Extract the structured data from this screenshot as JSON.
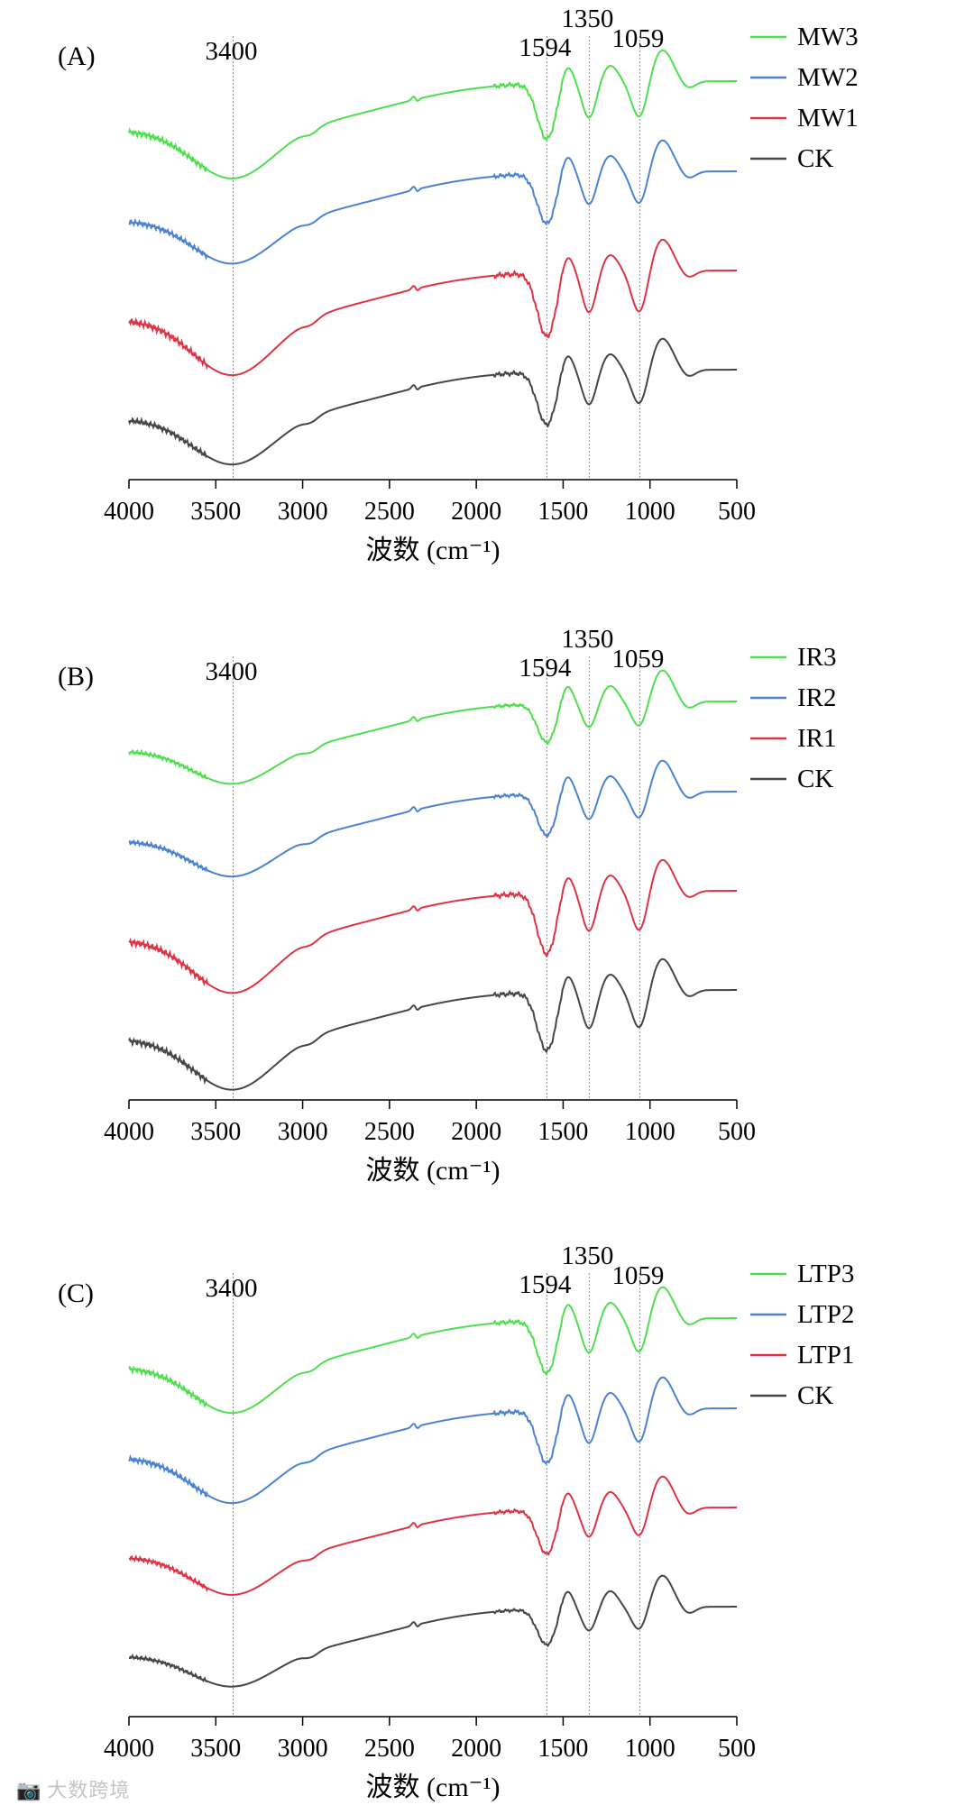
{
  "colors": {
    "MW3": "#4ddf4d",
    "MW2": "#4a82d2",
    "MW1": "#dd3343",
    "CK": "#454545",
    "IR3": "#4ddf4d",
    "IR2": "#4a82d2",
    "IR1": "#dd3343",
    "LTP3": "#4ddf4d",
    "LTP2": "#4a82d2",
    "LTP1": "#dd3343",
    "axis": "#000000",
    "guide": "#8c8c8c"
  },
  "watermark": {
    "icon": "camera-logo-icon",
    "text": "大数跨境"
  },
  "chart_data": [
    {
      "type": "line",
      "panel_label": "(A)",
      "xlabel": "波数 (cm⁻¹)",
      "xlim": [
        4000,
        500
      ],
      "xticks": [
        "4000",
        "3500",
        "3000",
        "2500",
        "2000",
        "1500",
        "1000",
        "500"
      ],
      "vlines": [
        {
          "x": 3400,
          "label": "3400"
        },
        {
          "x": 1594,
          "label": "1594"
        },
        {
          "x": 1350,
          "label": "1350"
        },
        {
          "x": 1059,
          "label": "1059"
        }
      ],
      "legend_position": "top-right",
      "legend": [
        "MW3",
        "MW2",
        "MW1",
        "CK"
      ],
      "series": [
        {
          "name": "MW3",
          "offset": 3.0,
          "depth": 1.0
        },
        {
          "name": "MW2",
          "offset": 2.0,
          "depth": 0.9
        },
        {
          "name": "MW1",
          "offset": 1.0,
          "depth": 1.15
        },
        {
          "name": "CK",
          "offset": 0.0,
          "depth": 0.95
        }
      ]
    },
    {
      "type": "line",
      "panel_label": "(B)",
      "xlabel": "波数 (cm⁻¹)",
      "xlim": [
        4000,
        500
      ],
      "xticks": [
        "4000",
        "3500",
        "3000",
        "2500",
        "2000",
        "1500",
        "1000",
        "500"
      ],
      "vlines": [
        {
          "x": 3400,
          "label": "3400"
        },
        {
          "x": 1594,
          "label": "1594"
        },
        {
          "x": 1350,
          "label": "1350"
        },
        {
          "x": 1059,
          "label": "1059"
        }
      ],
      "legend_position": "top-right",
      "legend": [
        "IR3",
        "IR2",
        "IR1",
        "CK"
      ],
      "series": [
        {
          "name": "IR3",
          "offset": 3.0,
          "depth": 0.7
        },
        {
          "name": "IR2",
          "offset": 2.0,
          "depth": 0.75
        },
        {
          "name": "IR1",
          "offset": 1.0,
          "depth": 1.1
        },
        {
          "name": "CK",
          "offset": 0.0,
          "depth": 1.05
        }
      ]
    },
    {
      "type": "line",
      "panel_label": "(C)",
      "xlabel": "波数 (cm⁻¹)",
      "xlim": [
        4000,
        500
      ],
      "xticks": [
        "4000",
        "3500",
        "3000",
        "2500",
        "2000",
        "1500",
        "1000",
        "500"
      ],
      "vlines": [
        {
          "x": 3400,
          "label": "3400"
        },
        {
          "x": 1594,
          "label": "1594"
        },
        {
          "x": 1350,
          "label": "1350"
        },
        {
          "x": 1059,
          "label": "1059"
        }
      ],
      "legend_position": "top-right",
      "legend": [
        "LTP3",
        "LTP2",
        "LTP1",
        "CK"
      ],
      "series": [
        {
          "name": "LTP3",
          "offset": 3.0,
          "depth": 0.95
        },
        {
          "name": "LTP2",
          "offset": 2.0,
          "depth": 0.95
        },
        {
          "name": "LTP1",
          "offset": 1.0,
          "depth": 0.8
        },
        {
          "name": "CK",
          "offset": 0.0,
          "depth": 0.65
        }
      ]
    }
  ]
}
